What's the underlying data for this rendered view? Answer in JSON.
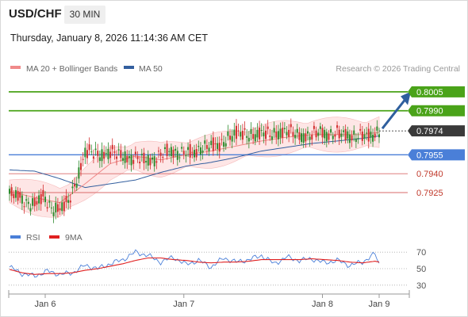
{
  "header": {
    "symbol": "USD/CHF",
    "timeframe": "30 MIN",
    "datetime": "Thursday, January 8, 2026 11:14:36 AM CET"
  },
  "legend": {
    "ma20_label": "MA 20 + Bollinger Bands",
    "ma50_label": "MA 50",
    "credit": "Research © 2026 Trading Central",
    "rsi_label": "RSI",
    "rsi_ma_label": "9MA"
  },
  "colors": {
    "resistance": "#4aa319",
    "support_blue": "#4a7fd8",
    "support_red": "#d96a6a",
    "current": "#3a3a3a",
    "ma20": "#f08a8a",
    "ma50": "#335f9f",
    "bollinger_fill": "#fddede",
    "candle_up": "#2e8b2e",
    "candle_down": "#d32f2f",
    "arrow": "#2f5f9e",
    "rsi": "#4a7fd8",
    "rsi_ma": "#e02020"
  },
  "chart_data": [
    {
      "type": "candlestick",
      "x_axis": {
        "tick_labels": [
          "Jan 6",
          "Jan 7",
          "Jan 8",
          "Jan 9"
        ]
      },
      "ylim": [
        0.7908,
        0.8015
      ],
      "levels": [
        {
          "value": 0.8005,
          "label": "0.8005",
          "kind": "resistance"
        },
        {
          "value": 0.799,
          "label": "0.7990",
          "kind": "resistance"
        },
        {
          "value": 0.7974,
          "label": "0.7974",
          "kind": "current"
        },
        {
          "value": 0.7955,
          "label": "0.7955",
          "kind": "support_blue"
        },
        {
          "value": 0.794,
          "label": "0.7940",
          "kind": "support_red"
        },
        {
          "value": 0.7925,
          "label": "0.7925",
          "kind": "support_red"
        }
      ],
      "series": [
        {
          "name": "price",
          "x": [
            0,
            4,
            8,
            12,
            16,
            20,
            24,
            28,
            32,
            36,
            40,
            44,
            48,
            52,
            56,
            60,
            64,
            68,
            72,
            76,
            80,
            84,
            88,
            92,
            96,
            100,
            104,
            108,
            112,
            116,
            120,
            124,
            128,
            132,
            136,
            140,
            144,
            148,
            152,
            156,
            160,
            164,
            168,
            172,
            176
          ],
          "values": [
            0.7924,
            0.7922,
            0.7917,
            0.7916,
            0.7921,
            0.7913,
            0.7912,
            0.7917,
            0.7935,
            0.7957,
            0.7956,
            0.7955,
            0.7957,
            0.7955,
            0.7953,
            0.7952,
            0.7951,
            0.7951,
            0.7955,
            0.7958,
            0.7957,
            0.7957,
            0.7956,
            0.7962,
            0.7962,
            0.7962,
            0.7969,
            0.7972,
            0.7971,
            0.7971,
            0.7972,
            0.7971,
            0.7973,
            0.7973,
            0.7972,
            0.797,
            0.797,
            0.7974,
            0.7971,
            0.7972,
            0.7971,
            0.797,
            0.797,
            0.797,
            0.7974
          ]
        },
        {
          "name": "MA 20",
          "x": [
            0,
            12,
            24,
            36,
            48,
            60,
            72,
            84,
            96,
            108,
            120,
            132,
            144,
            156,
            168,
            176
          ],
          "values": [
            0.7926,
            0.7921,
            0.7917,
            0.7932,
            0.7948,
            0.7954,
            0.7951,
            0.7955,
            0.7958,
            0.7962,
            0.7966,
            0.7969,
            0.7971,
            0.7971,
            0.7971,
            0.7973
          ]
        },
        {
          "name": "MA 50",
          "x": [
            0,
            12,
            24,
            36,
            48,
            60,
            72,
            84,
            96,
            108,
            120,
            132,
            144,
            156,
            168,
            176
          ],
          "values": [
            0.7943,
            0.7942,
            0.7936,
            0.7929,
            0.7932,
            0.7935,
            0.7941,
            0.7946,
            0.7949,
            0.7953,
            0.7958,
            0.7961,
            0.7964,
            0.7966,
            0.7968,
            0.797
          ]
        }
      ],
      "forecast_arrow": {
        "from": {
          "x": 176,
          "value": 0.7974
        },
        "to": {
          "x": 190,
          "value": 0.8004
        }
      }
    },
    {
      "type": "line",
      "title": "RSI",
      "ylim": [
        25,
        75
      ],
      "tick_labels": [
        "70",
        "50",
        "30"
      ],
      "gridlines": [
        70,
        50,
        30
      ],
      "series": [
        {
          "name": "RSI",
          "x": [
            0,
            6,
            12,
            18,
            24,
            30,
            36,
            42,
            48,
            54,
            60,
            66,
            72,
            78,
            84,
            90,
            96,
            102,
            108,
            114,
            120,
            126,
            132,
            138,
            144,
            150,
            156,
            162,
            168,
            174,
            176
          ],
          "values": [
            52,
            44,
            41,
            47,
            43,
            45,
            54,
            50,
            56,
            61,
            70,
            66,
            58,
            64,
            55,
            60,
            52,
            63,
            58,
            61,
            66,
            56,
            64,
            60,
            62,
            57,
            60,
            54,
            58,
            68,
            55
          ]
        },
        {
          "name": "9MA",
          "x": [
            0,
            6,
            12,
            18,
            24,
            30,
            36,
            42,
            48,
            54,
            60,
            66,
            72,
            78,
            84,
            90,
            96,
            102,
            108,
            114,
            120,
            126,
            132,
            138,
            144,
            150,
            156,
            162,
            168,
            174,
            176
          ],
          "values": [
            49,
            45,
            43,
            44,
            44,
            45,
            48,
            50,
            53,
            56,
            60,
            63,
            63,
            61,
            60,
            58,
            57,
            58,
            58,
            59,
            61,
            61,
            61,
            61,
            62,
            61,
            60,
            58,
            57,
            59,
            58
          ]
        }
      ]
    }
  ]
}
